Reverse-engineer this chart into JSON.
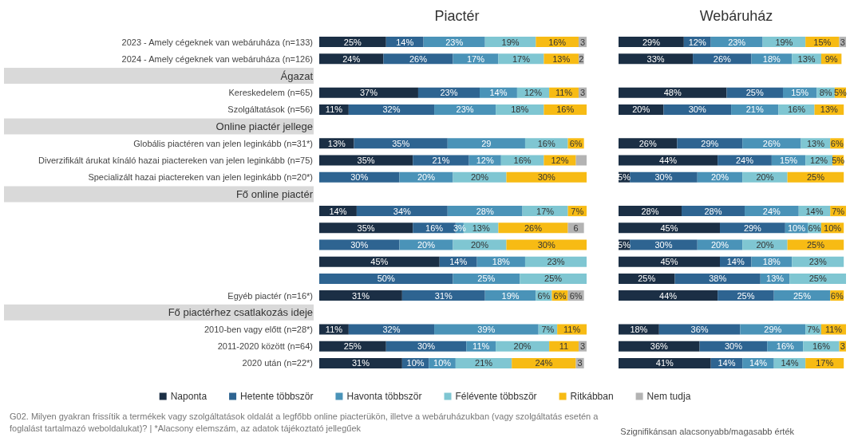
{
  "chart_data": [
    {
      "type": "bar",
      "orientation": "horizontal",
      "stacked": true,
      "title": "Piactér",
      "tick_labels": "y",
      "legend": "bottom",
      "categories": [
        "2023 - Amely cégeknek van webáruháza (n=133)",
        "2024 - Amely cégeknek van webáruháza (n=126)",
        "Ágazat",
        "Kereskedelem (n=65)",
        "Szolgáltatások (n=56)",
        "Online piactér jellege",
        "Globális piactéren van jelen leginkább (n=31*)",
        "Diverzifikált árukat kínáló hazai piactereken van jelen leginkább (n=75)",
        "Specializált hazai piactereken van jelen leginkább (n=20*)",
        "Fő online piactér",
        null,
        null,
        null,
        null,
        null,
        "Egyéb piactér (n=16*)",
        "Fő piactérhez csatlakozás ideje",
        "2010-ben vagy előtt (n=28*)",
        "2011-2020 között (n=64)",
        "2020 után (n=22*)"
      ],
      "series": [
        {
          "name": "Naponta",
          "color": "#1b2f45",
          "values": [
            25,
            24,
            null,
            37,
            11,
            null,
            13,
            35,
            null,
            null,
            14,
            35,
            null,
            45,
            null,
            31,
            null,
            11,
            25,
            31
          ],
          "value_labels": [
            "25%",
            "24%",
            null,
            "37%",
            "11%",
            null,
            "13%",
            "35%",
            null,
            null,
            "14%",
            "35%",
            null,
            "45%",
            null,
            "31%",
            null,
            "11%",
            "25%",
            "31%"
          ]
        },
        {
          "name": "Hetente többször",
          "color": "#2e6491",
          "values": [
            14,
            26,
            null,
            23,
            32,
            null,
            35,
            21,
            30,
            null,
            34,
            16,
            30,
            14,
            50,
            31,
            null,
            32,
            30,
            10
          ],
          "value_labels": [
            "14%",
            "26%",
            null,
            "23%",
            "32%",
            null,
            "35%",
            "21%",
            "30%",
            null,
            "34%",
            "16%",
            "30%",
            "14%",
            "50%",
            "31%",
            null,
            "32%",
            "30%",
            "10%"
          ]
        },
        {
          "name": "Havonta többször",
          "color": "#4a93b8",
          "values": [
            23,
            17,
            null,
            14,
            23,
            null,
            29,
            12,
            20,
            null,
            28,
            3,
            20,
            18,
            25,
            19,
            null,
            39,
            11,
            10
          ],
          "value_labels": [
            "23%",
            "17%",
            null,
            "14%",
            "23%",
            null,
            "29",
            "12%",
            "20%",
            null,
            "28%",
            "3%",
            "20%",
            "18%",
            "25%",
            "19%",
            null,
            "39%",
            "11%",
            "10%"
          ]
        },
        {
          "name": "Félévente többször",
          "color": "#7fc6d2",
          "values": [
            19,
            17,
            null,
            12,
            18,
            null,
            16,
            16,
            20,
            null,
            17,
            13,
            20,
            23,
            25,
            6,
            null,
            7,
            20,
            21
          ],
          "value_labels": [
            "19%",
            "17%",
            null,
            "12%",
            "18%",
            null,
            "16%",
            "16%",
            "20%",
            null,
            "17%",
            "13%",
            "20%",
            "23%",
            "25%",
            "6%",
            null,
            "7%",
            "20%",
            "21%"
          ]
        },
        {
          "name": "Ritkábban",
          "color": "#f7bb14",
          "values": [
            16,
            13,
            null,
            11,
            16,
            null,
            6,
            12,
            30,
            null,
            7,
            26,
            30,
            null,
            null,
            6,
            null,
            11,
            11,
            24
          ],
          "value_labels": [
            "16%",
            "13%",
            null,
            "11%",
            "16%",
            null,
            "6%",
            "12%",
            "30%",
            null,
            "7%",
            "26%",
            "30%",
            null,
            null,
            "6%",
            null,
            "11%",
            "11",
            "24%"
          ]
        },
        {
          "name": "Nem tudja",
          "color": "#b3b3b3",
          "values": [
            3,
            2,
            null,
            3,
            null,
            null,
            null,
            4,
            null,
            null,
            null,
            6,
            null,
            null,
            null,
            6,
            null,
            null,
            3,
            3
          ],
          "value_labels": [
            "3",
            "2",
            null,
            "3",
            null,
            null,
            null,
            null,
            null,
            null,
            null,
            "6",
            null,
            null,
            null,
            "6%",
            null,
            null,
            "3",
            "3"
          ]
        }
      ],
      "annotations": [
        "G02. Milyen gyakran frissítik a termékek vagy szolgáltatások oldalát a legfőbb online piacterükön, illetve a webáruházukban (vagy szolgáltatás esetén a foglalást tartalmazó weboldalukat)? | *Alacsony elemszám, az adatok tájékoztató jellegűek",
        "Szignifikánsan alacsonyabb/magasabb érték"
      ]
    },
    {
      "type": "bar",
      "orientation": "horizontal",
      "stacked": true,
      "title": "Webáruház",
      "tick_labels": false,
      "categories": [
        null,
        null,
        null,
        null,
        null,
        null,
        null,
        null,
        null,
        null,
        null,
        null,
        null,
        null,
        null,
        null,
        null,
        null,
        null,
        null
      ],
      "series": [
        {
          "color": "#1b2f45",
          "values": [
            29,
            33,
            null,
            48,
            20,
            null,
            26,
            44,
            5,
            null,
            28,
            45,
            5,
            45,
            25,
            44,
            null,
            18,
            36,
            41
          ],
          "value_labels": [
            "29%",
            "33%",
            null,
            "48%",
            "20%",
            null,
            "26%",
            "44%",
            "5%",
            null,
            "28%",
            "45%",
            "5%",
            "45%",
            "25%",
            "44%",
            null,
            "18%",
            "36%",
            "41%"
          ]
        },
        {
          "color": "#2e6491",
          "values": [
            12,
            26,
            null,
            25,
            30,
            null,
            29,
            24,
            30,
            null,
            28,
            29,
            30,
            14,
            38,
            25,
            null,
            36,
            30,
            14
          ],
          "value_labels": [
            "12%",
            "26%",
            null,
            "25%",
            "30%",
            null,
            "29%",
            "24%",
            "30%",
            null,
            "28%",
            "29%",
            "30%",
            "14%",
            "38%",
            "25%",
            null,
            "36%",
            "30%",
            "14%"
          ]
        },
        {
          "color": "#4a93b8",
          "values": [
            23,
            18,
            null,
            15,
            21,
            null,
            26,
            15,
            20,
            null,
            24,
            10,
            20,
            18,
            13,
            25,
            null,
            29,
            16,
            14
          ],
          "value_labels": [
            "23%",
            "18%",
            null,
            "15%",
            "21%",
            null,
            "26%",
            "15%",
            "20%",
            null,
            "24%",
            "10%",
            "20%",
            "18%",
            "13%",
            "25%",
            null,
            "29%",
            "16%",
            "14%"
          ]
        },
        {
          "color": "#7fc6d2",
          "values": [
            19,
            13,
            null,
            8,
            16,
            null,
            13,
            12,
            20,
            null,
            14,
            6,
            20,
            23,
            25,
            null,
            null,
            7,
            16,
            14
          ],
          "value_labels": [
            "19%",
            "13%",
            null,
            "8%",
            "16%",
            null,
            "13%",
            "12%",
            "20%",
            null,
            "14%",
            "6%",
            "20%",
            "23%",
            "25%",
            null,
            null,
            "7%",
            "16%",
            "14%"
          ]
        },
        {
          "color": "#f7bb14",
          "values": [
            15,
            9,
            null,
            5,
            13,
            null,
            6,
            5,
            25,
            null,
            7,
            10,
            25,
            null,
            null,
            6,
            null,
            11,
            3,
            17
          ],
          "value_labels": [
            "15%",
            "9%",
            null,
            "5%",
            "13%",
            null,
            "6%",
            "5%",
            "25%",
            null,
            "7%",
            "10%",
            "25%",
            null,
            null,
            "6%",
            null,
            "11%",
            "3",
            "17%"
          ]
        },
        {
          "color": "#b3b3b3",
          "values": [
            3,
            null,
            null,
            null,
            null,
            null,
            null,
            null,
            null,
            null,
            null,
            null,
            null,
            null,
            null,
            null,
            null,
            null,
            null,
            null
          ],
          "value_labels": [
            "3",
            null,
            null,
            null,
            null,
            null,
            null,
            null,
            null,
            null,
            null,
            null,
            null,
            null,
            null,
            null,
            null,
            null,
            null,
            null
          ]
        }
      ]
    }
  ]
}
